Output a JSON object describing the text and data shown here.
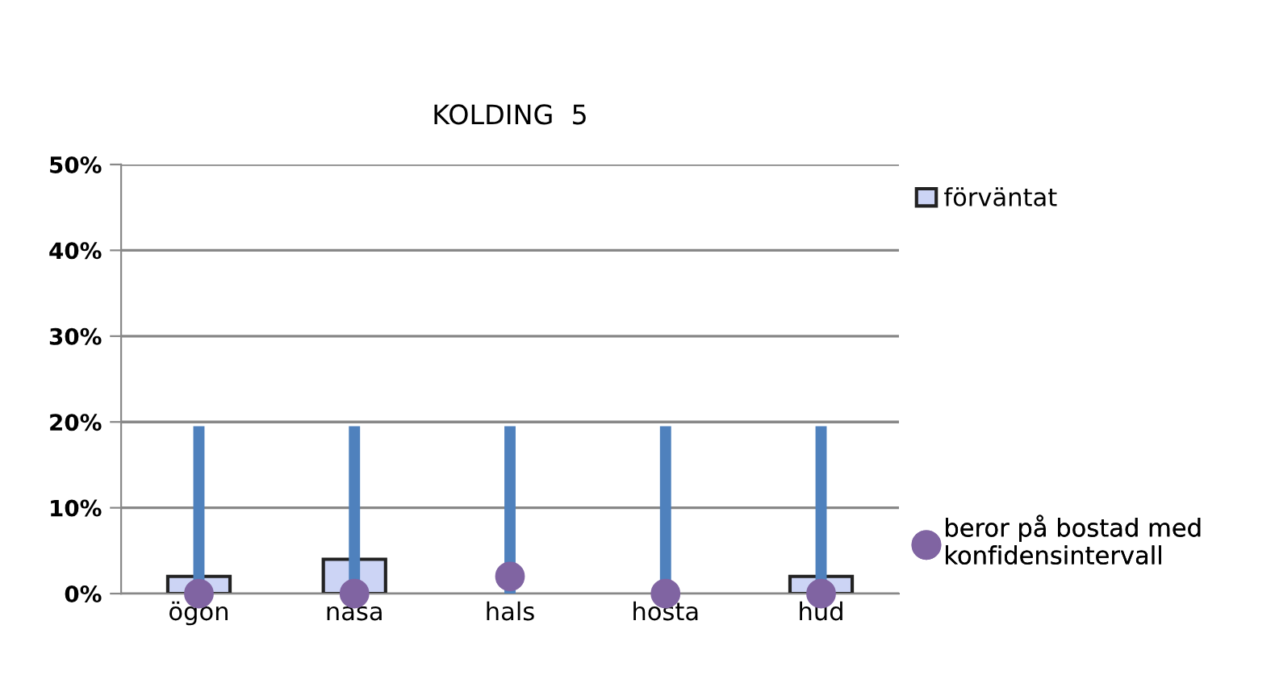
{
  "chart_data": {
    "type": "bar",
    "title": "KOLDING  5",
    "categories": [
      "ögon",
      "näsa",
      "hals",
      "hosta",
      "hud"
    ],
    "series": [
      {
        "name": "förväntat",
        "color": "#ccd4f5",
        "values": [
          2,
          4,
          0,
          0,
          2
        ]
      },
      {
        "name": "beror på bostad med\nkonfidensintervall",
        "type": "scatter",
        "color": "#8064a2",
        "values": [
          0,
          0,
          2,
          0,
          0
        ],
        "errors": [
          [
            0,
            19.5
          ],
          [
            0,
            19.5
          ],
          [
            0,
            19.5
          ],
          [
            0,
            19.5
          ],
          [
            0,
            19.5
          ]
        ]
      }
    ],
    "ylim": [
      0,
      50
    ],
    "yticks": [
      {
        "value": 0,
        "label": "0%"
      },
      {
        "value": 10,
        "label": "10%"
      },
      {
        "value": 20,
        "label": "20%"
      },
      {
        "value": 30,
        "label": "30%"
      },
      {
        "value": 40,
        "label": "40%"
      },
      {
        "value": 50,
        "label": "50%"
      }
    ],
    "grid": "y",
    "legend": "right",
    "marker": "circle"
  }
}
